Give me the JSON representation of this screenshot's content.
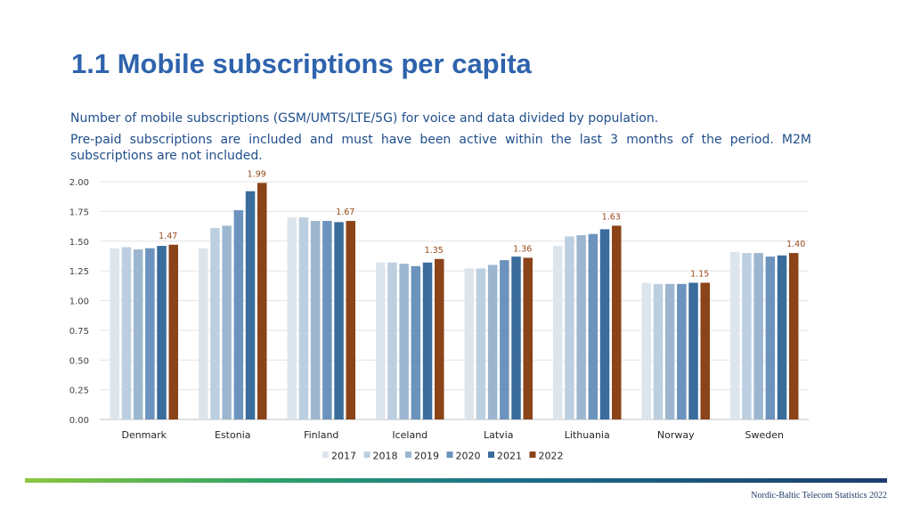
{
  "title": "1.1 Mobile subscriptions per capita",
  "description": [
    "Number of mobile subscriptions (GSM/UMTS/LTE/5G) for voice and data divided by population.",
    "Pre-paid subscriptions are included and must have been active within the last 3 months of the period. M2M subscriptions are not included."
  ],
  "footer": "Nordic-Baltic Telecom Statistics 2022",
  "colors": {
    "title": "#2e63ad",
    "text": "#1f4e8c",
    "label": "#9a4a1c",
    "series": [
      "#dde5ec",
      "#bccfe0",
      "#9cb6cf",
      "#6b93bd",
      "#3a6c9c",
      "#8b4318"
    ]
  },
  "chart_data": {
    "type": "bar",
    "title": "",
    "xlabel": "",
    "ylabel": "",
    "ylim": [
      0,
      2.0
    ],
    "yticks": [
      "0.00",
      "0.25",
      "0.50",
      "0.75",
      "1.00",
      "1.25",
      "1.50",
      "1.75",
      "2.00"
    ],
    "grid": true,
    "legend_position": "bottom",
    "categories": [
      "Denmark",
      "Estonia",
      "Finland",
      "Iceland",
      "Latvia",
      "Lithuania",
      "Norway",
      "Sweden"
    ],
    "series": [
      {
        "name": "2017",
        "values": [
          1.44,
          1.44,
          1.7,
          1.32,
          1.27,
          1.46,
          1.15,
          1.41
        ]
      },
      {
        "name": "2018",
        "values": [
          1.45,
          1.61,
          1.7,
          1.32,
          1.27,
          1.54,
          1.14,
          1.4
        ]
      },
      {
        "name": "2019",
        "values": [
          1.43,
          1.63,
          1.67,
          1.31,
          1.3,
          1.55,
          1.14,
          1.4
        ]
      },
      {
        "name": "2020",
        "values": [
          1.44,
          1.76,
          1.67,
          1.29,
          1.34,
          1.56,
          1.14,
          1.37
        ]
      },
      {
        "name": "2021",
        "values": [
          1.46,
          1.92,
          1.66,
          1.32,
          1.37,
          1.6,
          1.15,
          1.38
        ]
      },
      {
        "name": "2022",
        "values": [
          1.47,
          1.99,
          1.67,
          1.35,
          1.36,
          1.63,
          1.15,
          1.4
        ]
      }
    ],
    "data_labels": {
      "series": "2022",
      "values": [
        "1.47",
        "1.99",
        "1.67",
        "1.35",
        "1.36",
        "1.63",
        "1.15",
        "1.40"
      ]
    }
  }
}
